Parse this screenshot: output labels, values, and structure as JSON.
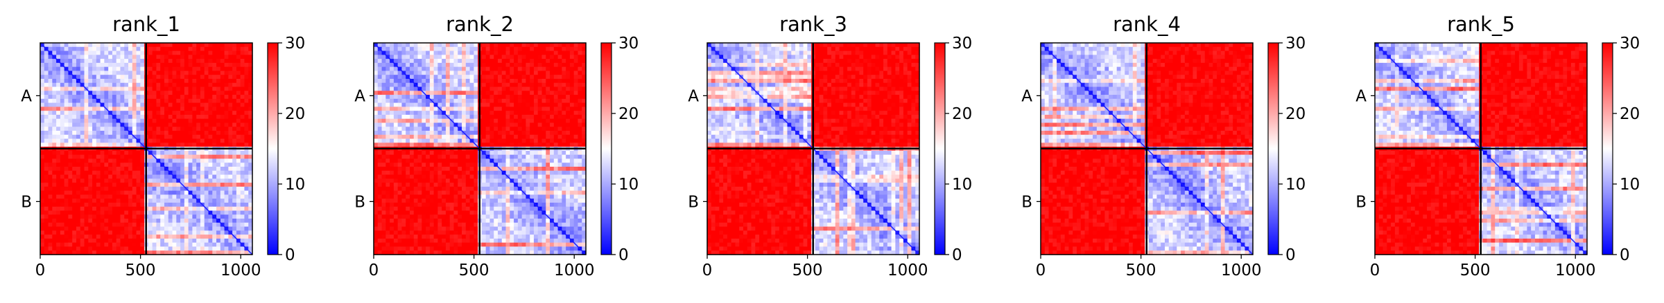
{
  "chart_data": {
    "type": "heatmap",
    "colormap": {
      "name": "bwr",
      "colors": [
        "#0000ff",
        "#ffffff",
        "#ff0000"
      ],
      "vmin": 0,
      "vmax": 30
    },
    "colorbar_ticks": [
      "0",
      "10",
      "20",
      "30"
    ],
    "x_ticks": [
      "0",
      "500",
      "1000"
    ],
    "chain_labels": [
      "A",
      "B"
    ],
    "matrix_length": 1058,
    "chain_boundary": 528,
    "panels": [
      {
        "title": "rank_1"
      },
      {
        "title": "rank_2"
      },
      {
        "title": "rank_3"
      },
      {
        "title": "rank_4"
      },
      {
        "title": "rank_5"
      }
    ]
  }
}
